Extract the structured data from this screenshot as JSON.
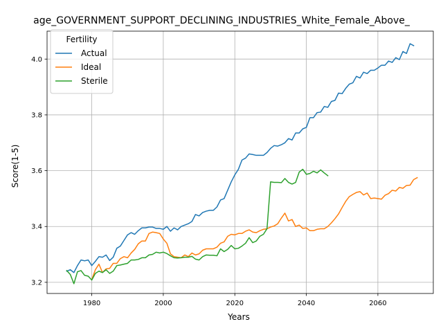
{
  "chart_data": {
    "type": "line",
    "title": "age_GOVERNMENT_SUPPORT_DECLINING_INDUSTRIES_White_Female_Above_",
    "xlabel": "Years",
    "ylabel": "Score(1-5)",
    "xlim": [
      1967.5,
      2075.5
    ],
    "ylim": [
      3.16,
      4.1
    ],
    "xticks": [
      1980,
      2000,
      2020,
      2040,
      2060
    ],
    "yticks": [
      3.2,
      3.4,
      3.6,
      3.8,
      4.0
    ],
    "xtick_labels": [
      "1980",
      "2000",
      "2020",
      "2040",
      "2060"
    ],
    "ytick_labels": [
      "3.2",
      "3.4",
      "3.6",
      "3.8",
      "4.0"
    ],
    "grid": true,
    "legend": {
      "title": "Fertility",
      "placement": "upper-left"
    },
    "series": [
      {
        "name": "Actual",
        "color": "#1f77b4",
        "points": [
          [
            1973,
            3.24
          ],
          [
            1974,
            3.245
          ],
          [
            1975,
            3.235
          ],
          [
            1976,
            3.26
          ],
          [
            1977,
            3.28
          ],
          [
            1978,
            3.277
          ],
          [
            1979,
            3.28
          ],
          [
            1980,
            3.26
          ],
          [
            1981,
            3.275
          ],
          [
            1982,
            3.292
          ],
          [
            1983,
            3.29
          ],
          [
            1984,
            3.298
          ],
          [
            1985,
            3.278
          ],
          [
            1986,
            3.29
          ],
          [
            1987,
            3.322
          ],
          [
            1988,
            3.33
          ],
          [
            1989,
            3.35
          ],
          [
            1990,
            3.37
          ],
          [
            1991,
            3.378
          ],
          [
            1992,
            3.372
          ],
          [
            1993,
            3.385
          ],
          [
            1994,
            3.395
          ],
          [
            1995,
            3.395
          ],
          [
            1996,
            3.398
          ],
          [
            1997,
            3.398
          ],
          [
            1998,
            3.393
          ],
          [
            1999,
            3.393
          ],
          [
            2000,
            3.39
          ],
          [
            2001,
            3.4
          ],
          [
            2002,
            3.383
          ],
          [
            2003,
            3.395
          ],
          [
            2004,
            3.388
          ],
          [
            2005,
            3.4
          ],
          [
            2006,
            3.405
          ],
          [
            2007,
            3.41
          ],
          [
            2008,
            3.418
          ],
          [
            2009,
            3.443
          ],
          [
            2010,
            3.438
          ],
          [
            2011,
            3.45
          ],
          [
            2012,
            3.455
          ],
          [
            2013,
            3.458
          ],
          [
            2014,
            3.458
          ],
          [
            2015,
            3.47
          ],
          [
            2016,
            3.495
          ],
          [
            2017,
            3.5
          ],
          [
            2018,
            3.53
          ],
          [
            2019,
            3.56
          ],
          [
            2020,
            3.585
          ],
          [
            2021,
            3.605
          ],
          [
            2022,
            3.638
          ],
          [
            2023,
            3.645
          ],
          [
            2024,
            3.66
          ],
          [
            2025,
            3.658
          ],
          [
            2026,
            3.655
          ],
          [
            2027,
            3.655
          ],
          [
            2028,
            3.655
          ],
          [
            2029,
            3.665
          ],
          [
            2030,
            3.68
          ],
          [
            2031,
            3.69
          ],
          [
            2032,
            3.688
          ],
          [
            2033,
            3.693
          ],
          [
            2034,
            3.7
          ],
          [
            2035,
            3.715
          ],
          [
            2036,
            3.71
          ],
          [
            2037,
            3.735
          ],
          [
            2038,
            3.735
          ],
          [
            2039,
            3.75
          ],
          [
            2040,
            3.755
          ],
          [
            2041,
            3.79
          ],
          [
            2042,
            3.79
          ],
          [
            2043,
            3.808
          ],
          [
            2044,
            3.81
          ],
          [
            2045,
            3.83
          ],
          [
            2046,
            3.827
          ],
          [
            2047,
            3.848
          ],
          [
            2048,
            3.852
          ],
          [
            2049,
            3.878
          ],
          [
            2050,
            3.876
          ],
          [
            2051,
            3.895
          ],
          [
            2052,
            3.91
          ],
          [
            2053,
            3.915
          ],
          [
            2054,
            3.938
          ],
          [
            2055,
            3.932
          ],
          [
            2056,
            3.953
          ],
          [
            2057,
            3.948
          ],
          [
            2058,
            3.96
          ],
          [
            2059,
            3.96
          ],
          [
            2060,
            3.968
          ],
          [
            2061,
            3.978
          ],
          [
            2062,
            3.978
          ],
          [
            2063,
            3.993
          ],
          [
            2064,
            3.988
          ],
          [
            2065,
            4.005
          ],
          [
            2066,
            3.998
          ],
          [
            2067,
            4.027
          ],
          [
            2068,
            4.02
          ],
          [
            2069,
            4.055
          ],
          [
            2070,
            4.048
          ]
        ]
      },
      {
        "name": "Ideal",
        "color": "#ff7f0e",
        "points": [
          [
            1980,
            3.21
          ],
          [
            1981,
            3.245
          ],
          [
            1982,
            3.265
          ],
          [
            1983,
            3.235
          ],
          [
            1984,
            3.248
          ],
          [
            1985,
            3.25
          ],
          [
            1986,
            3.268
          ],
          [
            1987,
            3.268
          ],
          [
            1988,
            3.285
          ],
          [
            1989,
            3.292
          ],
          [
            1990,
            3.288
          ],
          [
            1991,
            3.305
          ],
          [
            1992,
            3.318
          ],
          [
            1993,
            3.338
          ],
          [
            1994,
            3.348
          ],
          [
            1995,
            3.348
          ],
          [
            1996,
            3.375
          ],
          [
            1997,
            3.38
          ],
          [
            1998,
            3.378
          ],
          [
            1999,
            3.375
          ],
          [
            2000,
            3.355
          ],
          [
            2001,
            3.34
          ],
          [
            2002,
            3.302
          ],
          [
            2003,
            3.292
          ],
          [
            2004,
            3.29
          ],
          [
            2005,
            3.288
          ],
          [
            2006,
            3.298
          ],
          [
            2007,
            3.292
          ],
          [
            2008,
            3.305
          ],
          [
            2009,
            3.298
          ],
          [
            2010,
            3.302
          ],
          [
            2011,
            3.315
          ],
          [
            2012,
            3.32
          ],
          [
            2013,
            3.32
          ],
          [
            2014,
            3.32
          ],
          [
            2015,
            3.326
          ],
          [
            2016,
            3.34
          ],
          [
            2017,
            3.345
          ],
          [
            2018,
            3.365
          ],
          [
            2019,
            3.372
          ],
          [
            2020,
            3.37
          ],
          [
            2021,
            3.375
          ],
          [
            2022,
            3.375
          ],
          [
            2023,
            3.383
          ],
          [
            2024,
            3.388
          ],
          [
            2025,
            3.38
          ],
          [
            2026,
            3.378
          ],
          [
            2027,
            3.385
          ],
          [
            2028,
            3.39
          ],
          [
            2029,
            3.392
          ],
          [
            2030,
            3.398
          ],
          [
            2031,
            3.402
          ],
          [
            2032,
            3.41
          ],
          [
            2033,
            3.43
          ],
          [
            2034,
            3.448
          ],
          [
            2035,
            3.42
          ],
          [
            2036,
            3.425
          ],
          [
            2037,
            3.4
          ],
          [
            2038,
            3.405
          ],
          [
            2039,
            3.393
          ],
          [
            2040,
            3.395
          ],
          [
            2041,
            3.385
          ],
          [
            2042,
            3.385
          ],
          [
            2043,
            3.39
          ],
          [
            2044,
            3.392
          ],
          [
            2045,
            3.392
          ],
          [
            2046,
            3.4
          ],
          [
            2047,
            3.413
          ],
          [
            2048,
            3.428
          ],
          [
            2049,
            3.445
          ],
          [
            2050,
            3.468
          ],
          [
            2051,
            3.49
          ],
          [
            2052,
            3.507
          ],
          [
            2053,
            3.515
          ],
          [
            2054,
            3.522
          ],
          [
            2055,
            3.525
          ],
          [
            2056,
            3.513
          ],
          [
            2057,
            3.52
          ],
          [
            2058,
            3.5
          ],
          [
            2059,
            3.502
          ],
          [
            2060,
            3.5
          ],
          [
            2061,
            3.498
          ],
          [
            2062,
            3.512
          ],
          [
            2063,
            3.518
          ],
          [
            2064,
            3.53
          ],
          [
            2065,
            3.527
          ],
          [
            2066,
            3.54
          ],
          [
            2067,
            3.537
          ],
          [
            2068,
            3.547
          ],
          [
            2069,
            3.548
          ],
          [
            2070,
            3.568
          ],
          [
            2071,
            3.575
          ]
        ]
      },
      {
        "name": "Sterile",
        "color": "#2ca02c",
        "points": [
          [
            1973,
            3.242
          ],
          [
            1974,
            3.228
          ],
          [
            1975,
            3.195
          ],
          [
            1976,
            3.238
          ],
          [
            1977,
            3.242
          ],
          [
            1978,
            3.225
          ],
          [
            1979,
            3.222
          ],
          [
            1980,
            3.208
          ],
          [
            1981,
            3.232
          ],
          [
            1982,
            3.24
          ],
          [
            1983,
            3.235
          ],
          [
            1984,
            3.245
          ],
          [
            1985,
            3.232
          ],
          [
            1986,
            3.24
          ],
          [
            1987,
            3.26
          ],
          [
            1988,
            3.262
          ],
          [
            1989,
            3.265
          ],
          [
            1990,
            3.268
          ],
          [
            1991,
            3.28
          ],
          [
            1992,
            3.28
          ],
          [
            1993,
            3.282
          ],
          [
            1994,
            3.288
          ],
          [
            1995,
            3.288
          ],
          [
            1996,
            3.298
          ],
          [
            1997,
            3.3
          ],
          [
            1998,
            3.308
          ],
          [
            1999,
            3.305
          ],
          [
            2000,
            3.308
          ],
          [
            2001,
            3.303
          ],
          [
            2002,
            3.295
          ],
          [
            2003,
            3.288
          ],
          [
            2004,
            3.287
          ],
          [
            2005,
            3.288
          ],
          [
            2006,
            3.29
          ],
          [
            2007,
            3.29
          ],
          [
            2008,
            3.293
          ],
          [
            2009,
            3.283
          ],
          [
            2010,
            3.28
          ],
          [
            2011,
            3.292
          ],
          [
            2012,
            3.298
          ],
          [
            2013,
            3.297
          ],
          [
            2014,
            3.297
          ],
          [
            2015,
            3.295
          ],
          [
            2016,
            3.32
          ],
          [
            2017,
            3.31
          ],
          [
            2018,
            3.318
          ],
          [
            2019,
            3.332
          ],
          [
            2020,
            3.32
          ],
          [
            2021,
            3.322
          ],
          [
            2022,
            3.33
          ],
          [
            2023,
            3.34
          ],
          [
            2024,
            3.36
          ],
          [
            2025,
            3.342
          ],
          [
            2026,
            3.348
          ],
          [
            2027,
            3.365
          ],
          [
            2028,
            3.372
          ],
          [
            2029,
            3.392
          ],
          [
            2030,
            3.56
          ],
          [
            2031,
            3.558
          ],
          [
            2032,
            3.558
          ],
          [
            2033,
            3.557
          ],
          [
            2034,
            3.572
          ],
          [
            2035,
            3.558
          ],
          [
            2036,
            3.552
          ],
          [
            2037,
            3.558
          ],
          [
            2038,
            3.595
          ],
          [
            2039,
            3.605
          ],
          [
            2040,
            3.587
          ],
          [
            2041,
            3.59
          ],
          [
            2042,
            3.598
          ],
          [
            2043,
            3.592
          ],
          [
            2044,
            3.603
          ],
          [
            2045,
            3.592
          ],
          [
            2046,
            3.582
          ]
        ]
      }
    ]
  }
}
